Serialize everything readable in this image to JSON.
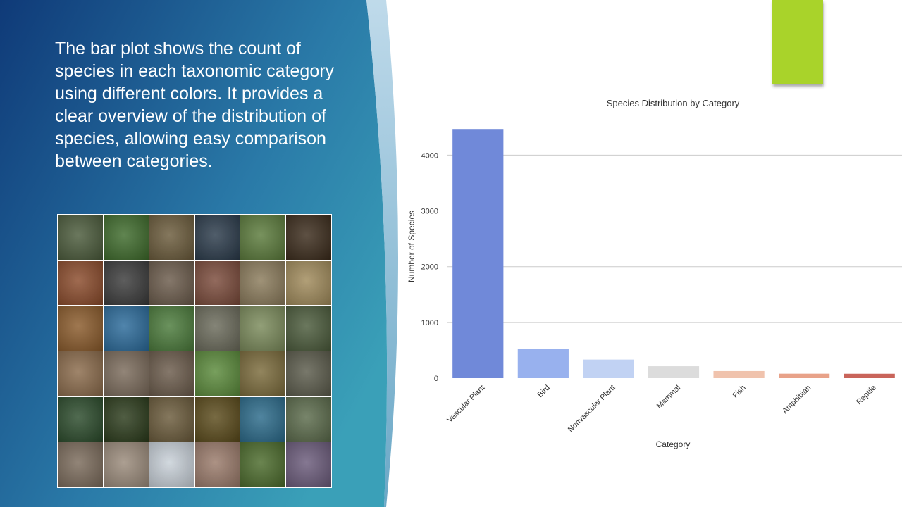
{
  "slide": {
    "description": "The bar plot shows the count of species in each taxonomic category using different colors. It provides a clear overview of the distribution of species, allowing easy comparison between categories.",
    "colors": {
      "background_dark": "#0f3a78",
      "background_light": "#2e96b8",
      "accent_green": "#a9d32a"
    }
  },
  "collage": {
    "rows": 6,
    "cols": 6,
    "tile_colors": [
      [
        "#4a5a3a",
        "#3d6a2a",
        "#6a5a3a",
        "#2a3a4a",
        "#5a7a3a",
        "#3a2a1a"
      ],
      [
        "#8a4a2a",
        "#3a3a3a",
        "#6a5a4a",
        "#7a4a3a",
        "#8a7a5a",
        "#a08a5a"
      ],
      [
        "#8a5a2a",
        "#2a6a9a",
        "#4a7a3a",
        "#6a6a5a",
        "#7a8a5a",
        "#4a5a3a"
      ],
      [
        "#8a6a4a",
        "#7a6a5a",
        "#6a5a4a",
        "#5a8a3a",
        "#7a6a3a",
        "#5a5a4a"
      ],
      [
        "#2a4a2a",
        "#2a3a1a",
        "#6a5a3a",
        "#5a4a1a",
        "#2a6a8a",
        "#5a6a4a"
      ],
      [
        "#7a6a5a",
        "#9a8a7a",
        "#c8d0d8",
        "#9a7a6a",
        "#4a6a2a",
        "#6a5a7a"
      ]
    ]
  },
  "chart_data": {
    "type": "bar",
    "title": "Species Distribution by Category",
    "xlabel": "Category",
    "ylabel": "Number of Species",
    "categories": [
      "Vascular Plant",
      "Bird",
      "Nonvascular Plant",
      "Mammal",
      "Fish",
      "Amphibian",
      "Reptile"
    ],
    "values": [
      4470,
      521,
      333,
      214,
      127,
      80,
      79
    ],
    "colors": [
      "#7089d9",
      "#98b1ee",
      "#c1d2f3",
      "#dcdcdc",
      "#f0c3ad",
      "#e8a289",
      "#c9645a"
    ],
    "yticks": [
      0,
      1000,
      2000,
      3000,
      4000
    ],
    "ylim": [
      0,
      4700
    ],
    "grid": true,
    "legend": "none"
  }
}
